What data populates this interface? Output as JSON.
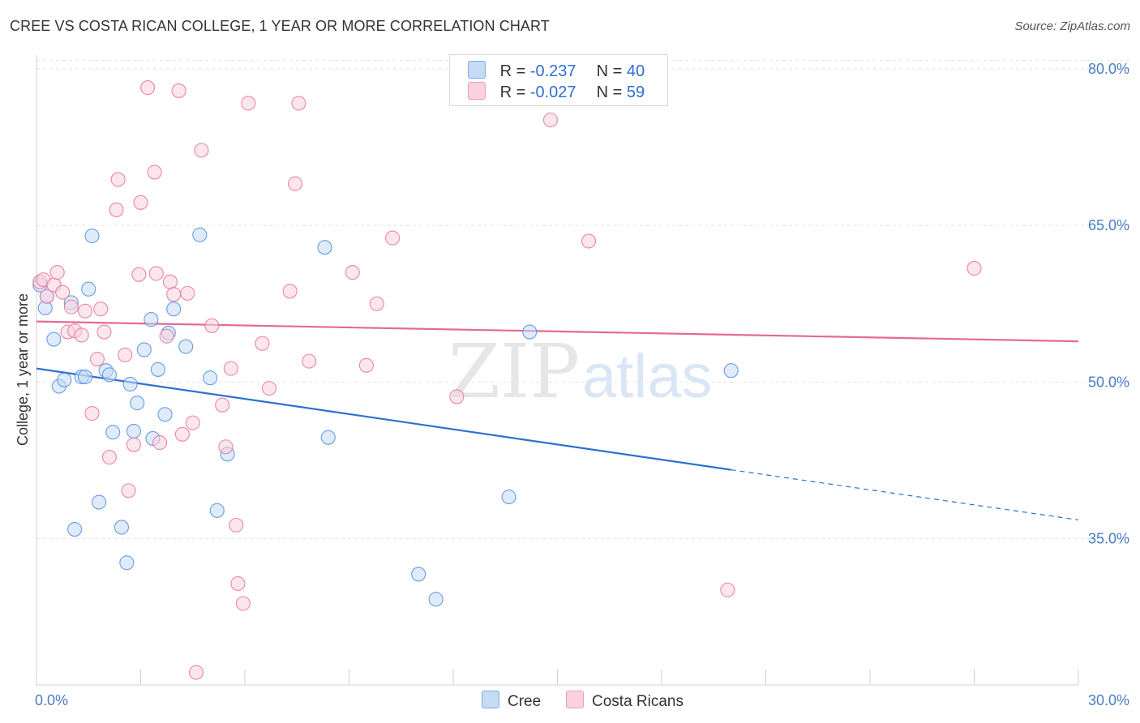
{
  "header": {
    "title": "CREE VS COSTA RICAN COLLEGE, 1 YEAR OR MORE CORRELATION CHART",
    "source": "Source: ZipAtlas.com"
  },
  "watermark": {
    "zip": "ZIP",
    "atlas": "atlas"
  },
  "legend": {
    "r_label": "R =",
    "n_label": "N =",
    "rows": [
      {
        "r": "-0.237",
        "n": "40",
        "color": "#aac8f0"
      },
      {
        "r": "-0.027",
        "n": "59",
        "color": "#f8bdd0"
      }
    ]
  },
  "bottom_legend": [
    {
      "label": "Cree",
      "color": "#aac8f0"
    },
    {
      "label": "Costa Ricans",
      "color": "#f8bdd0"
    }
  ],
  "chart_data": {
    "type": "scatter",
    "title": "CREE VS COSTA RICAN COLLEGE, 1 YEAR OR MORE CORRELATION CHART",
    "xlabel": "",
    "ylabel": "College, 1 year or more",
    "xlim": [
      0,
      30
    ],
    "ylim": [
      21,
      81
    ],
    "x_tick_labels": [
      "0.0%",
      "30.0%"
    ],
    "y_ticks": [
      35,
      50,
      65,
      80
    ],
    "y_tick_labels": [
      "35.0%",
      "50.0%",
      "65.0%",
      "80.0%"
    ],
    "grid": true,
    "legend_position": "top-center",
    "series": [
      {
        "name": "Cree",
        "color": "#5b93de",
        "fill": "#c5dbf5",
        "trend": {
          "x0": 0,
          "y0": 51.3,
          "x1": 20,
          "y1": 41.6,
          "dash_to_x": 30,
          "dash_to_y": 36.8
        },
        "points": [
          [
            0.1,
            59.3
          ],
          [
            0.25,
            57.1
          ],
          [
            0.3,
            58.2
          ],
          [
            0.5,
            54.1
          ],
          [
            0.65,
            49.6
          ],
          [
            0.8,
            50.2
          ],
          [
            1.0,
            57.6
          ],
          [
            1.1,
            35.9
          ],
          [
            1.3,
            50.5
          ],
          [
            1.4,
            50.5
          ],
          [
            1.5,
            58.9
          ],
          [
            1.6,
            64.0
          ],
          [
            1.8,
            38.5
          ],
          [
            2.0,
            51.1
          ],
          [
            2.1,
            50.7
          ],
          [
            2.2,
            45.2
          ],
          [
            2.45,
            36.1
          ],
          [
            2.6,
            32.7
          ],
          [
            2.7,
            49.8
          ],
          [
            2.9,
            48.0
          ],
          [
            3.1,
            53.1
          ],
          [
            3.3,
            56.0
          ],
          [
            3.35,
            44.6
          ],
          [
            3.5,
            51.2
          ],
          [
            3.7,
            46.9
          ],
          [
            3.8,
            54.7
          ],
          [
            3.95,
            57.0
          ],
          [
            4.3,
            53.4
          ],
          [
            4.7,
            64.1
          ],
          [
            5.0,
            50.4
          ],
          [
            5.2,
            37.7
          ],
          [
            5.5,
            43.1
          ],
          [
            2.8,
            45.3
          ],
          [
            8.3,
            62.9
          ],
          [
            8.4,
            44.7
          ],
          [
            11.0,
            31.6
          ],
          [
            11.5,
            29.2
          ],
          [
            13.6,
            39.0
          ],
          [
            14.2,
            54.8
          ],
          [
            20.0,
            51.1
          ]
        ]
      },
      {
        "name": "Costa Ricans",
        "color": "#e8799e",
        "fill": "#fad2df",
        "trend": {
          "x0": 0,
          "y0": 55.8,
          "x1": 30,
          "y1": 53.9
        },
        "points": [
          [
            0.1,
            59.6
          ],
          [
            0.2,
            59.8
          ],
          [
            0.3,
            58.2
          ],
          [
            0.5,
            59.3
          ],
          [
            0.6,
            60.5
          ],
          [
            0.75,
            58.6
          ],
          [
            0.9,
            54.8
          ],
          [
            1.0,
            57.2
          ],
          [
            1.1,
            54.9
          ],
          [
            1.3,
            54.5
          ],
          [
            1.4,
            56.8
          ],
          [
            1.6,
            47.0
          ],
          [
            1.75,
            52.2
          ],
          [
            1.85,
            57.0
          ],
          [
            1.95,
            54.8
          ],
          [
            2.1,
            42.8
          ],
          [
            2.3,
            66.5
          ],
          [
            2.35,
            69.4
          ],
          [
            2.55,
            52.6
          ],
          [
            2.65,
            39.6
          ],
          [
            2.8,
            44.0
          ],
          [
            2.95,
            60.3
          ],
          [
            3.0,
            67.2
          ],
          [
            3.2,
            78.2
          ],
          [
            3.4,
            70.1
          ],
          [
            3.45,
            60.4
          ],
          [
            3.55,
            44.2
          ],
          [
            3.75,
            54.4
          ],
          [
            3.85,
            59.6
          ],
          [
            3.95,
            58.4
          ],
          [
            4.1,
            77.9
          ],
          [
            4.2,
            45.0
          ],
          [
            4.35,
            58.5
          ],
          [
            4.5,
            46.1
          ],
          [
            4.6,
            22.2
          ],
          [
            4.75,
            72.2
          ],
          [
            5.05,
            55.4
          ],
          [
            5.35,
            47.8
          ],
          [
            5.45,
            43.8
          ],
          [
            5.6,
            51.3
          ],
          [
            5.75,
            36.3
          ],
          [
            5.8,
            30.7
          ],
          [
            5.95,
            28.8
          ],
          [
            6.1,
            76.7
          ],
          [
            6.5,
            53.7
          ],
          [
            6.7,
            49.4
          ],
          [
            7.3,
            58.7
          ],
          [
            7.45,
            69.0
          ],
          [
            7.55,
            76.7
          ],
          [
            7.85,
            52.0
          ],
          [
            9.1,
            60.5
          ],
          [
            9.5,
            51.6
          ],
          [
            9.8,
            57.5
          ],
          [
            10.25,
            63.8
          ],
          [
            12.1,
            48.6
          ],
          [
            14.8,
            75.1
          ],
          [
            15.9,
            63.5
          ],
          [
            19.9,
            30.1
          ],
          [
            27.0,
            60.9
          ]
        ]
      }
    ]
  }
}
